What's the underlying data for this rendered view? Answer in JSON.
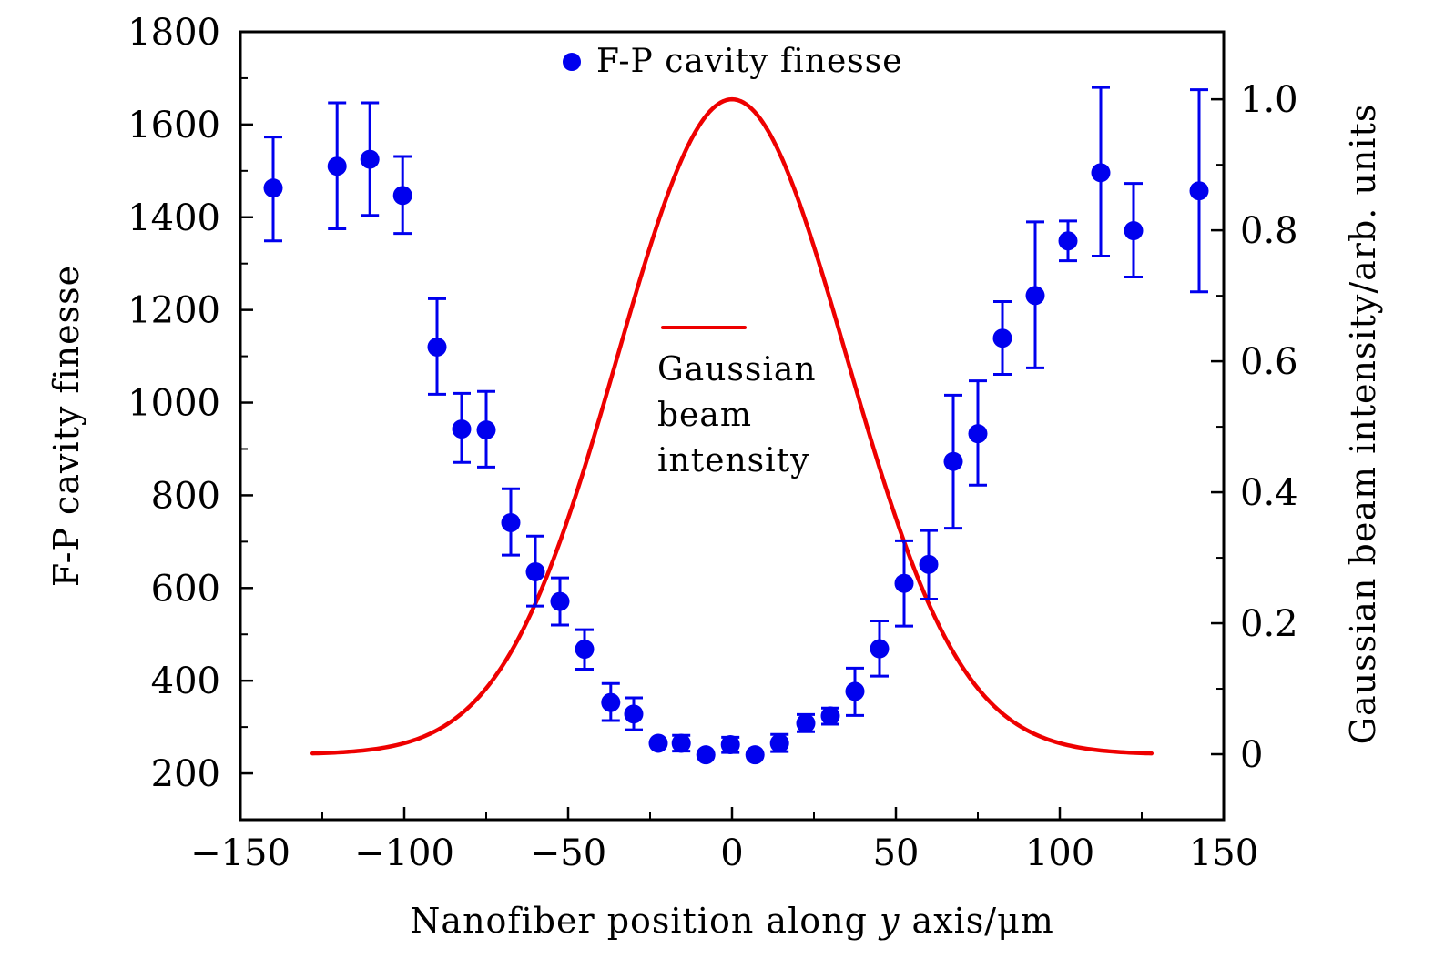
{
  "chart_data": {
    "type": "scatter",
    "title": "",
    "xlabel_parts": [
      "Nanofiber position along ",
      "y",
      " axis/μm"
    ],
    "xlabel": "Nanofiber position along y axis/μm",
    "ylabel": "F-P cavity finesse",
    "ylabel_right": "Gaussian beam intensity/arb. units",
    "xlim": [
      -150,
      150
    ],
    "ylim": [
      100,
      1800
    ],
    "ylim_right": [
      -0.1,
      1.103
    ],
    "xticks": [
      -150,
      -100,
      -50,
      0,
      50,
      100,
      150
    ],
    "xtick_labels": [
      "−150",
      "−100",
      "−50",
      "0",
      "50",
      "100",
      "150"
    ],
    "xminor_ticks": [
      -125,
      -75,
      -25,
      25,
      75,
      125
    ],
    "yticks": [
      200,
      400,
      600,
      800,
      1000,
      1200,
      1400,
      1600,
      1800
    ],
    "ytick_labels": [
      "200",
      "400",
      "600",
      "800",
      "1000",
      "1200",
      "1400",
      "1600",
      "1800"
    ],
    "yminor_ticks": [
      300,
      500,
      700,
      900,
      1100,
      1300,
      1500,
      1700
    ],
    "yticks_right": [
      0,
      0.2,
      0.4,
      0.6,
      0.8,
      1.0
    ],
    "ytick_labels_right": [
      "0",
      "0.2",
      "0.4",
      "0.6",
      "0.8",
      "1.0"
    ],
    "yminor_ticks_right": [
      -0.1,
      0.1,
      0.3,
      0.5,
      0.7,
      0.9
    ],
    "grid": false,
    "series": [
      {
        "name": "F-P cavity finesse",
        "type": "scatter-errorbar",
        "axis": "left",
        "color": "#0000ee",
        "points": [
          {
            "x": -140,
            "y": 1463,
            "lo": 1349,
            "hi": 1573
          },
          {
            "x": -120.5,
            "y": 1510,
            "lo": 1375,
            "hi": 1647
          },
          {
            "x": -110.5,
            "y": 1525,
            "lo": 1404,
            "hi": 1647
          },
          {
            "x": -100.5,
            "y": 1447,
            "lo": 1365,
            "hi": 1531
          },
          {
            "x": -90,
            "y": 1120,
            "lo": 1018,
            "hi": 1224
          },
          {
            "x": -82.5,
            "y": 943,
            "lo": 871,
            "hi": 1020
          },
          {
            "x": -75,
            "y": 941,
            "lo": 861,
            "hi": 1024
          },
          {
            "x": -67.5,
            "y": 741,
            "lo": 671,
            "hi": 814
          },
          {
            "x": -60,
            "y": 635,
            "lo": 561,
            "hi": 712
          },
          {
            "x": -52.5,
            "y": 571,
            "lo": 520,
            "hi": 622
          },
          {
            "x": -45,
            "y": 468,
            "lo": 425,
            "hi": 510
          },
          {
            "x": -37,
            "y": 353,
            "lo": 314,
            "hi": 394
          },
          {
            "x": -30,
            "y": 328,
            "lo": 294,
            "hi": 363
          },
          {
            "x": -22.5,
            "y": 265,
            "lo": 265,
            "hi": 265
          },
          {
            "x": -15.5,
            "y": 265,
            "lo": 248,
            "hi": 282
          },
          {
            "x": -8,
            "y": 240,
            "lo": 240,
            "hi": 240
          },
          {
            "x": -0.5,
            "y": 262,
            "lo": 245,
            "hi": 278
          },
          {
            "x": 7,
            "y": 240,
            "lo": 240,
            "hi": 240
          },
          {
            "x": 14.5,
            "y": 265,
            "lo": 247,
            "hi": 284
          },
          {
            "x": 22.5,
            "y": 308,
            "lo": 290,
            "hi": 327
          },
          {
            "x": 30,
            "y": 324,
            "lo": 306,
            "hi": 341
          },
          {
            "x": 37.5,
            "y": 377,
            "lo": 325,
            "hi": 427
          },
          {
            "x": 45,
            "y": 469,
            "lo": 410,
            "hi": 529
          },
          {
            "x": 52.5,
            "y": 610,
            "lo": 518,
            "hi": 702
          },
          {
            "x": 60,
            "y": 651,
            "lo": 576,
            "hi": 724
          },
          {
            "x": 67.5,
            "y": 873,
            "lo": 729,
            "hi": 1016
          },
          {
            "x": 75,
            "y": 933,
            "lo": 822,
            "hi": 1047
          },
          {
            "x": 82.5,
            "y": 1139,
            "lo": 1061,
            "hi": 1218
          },
          {
            "x": 92.5,
            "y": 1231,
            "lo": 1075,
            "hi": 1390
          },
          {
            "x": 102.5,
            "y": 1349,
            "lo": 1306,
            "hi": 1392
          },
          {
            "x": 112.5,
            "y": 1496,
            "lo": 1316,
            "hi": 1680
          },
          {
            "x": 122.5,
            "y": 1371,
            "lo": 1271,
            "hi": 1473
          },
          {
            "x": 142.5,
            "y": 1457,
            "lo": 1239,
            "hi": 1675
          }
        ]
      },
      {
        "name": "Gaussian beam intensity",
        "type": "line",
        "axis": "right",
        "color": "#ee0000",
        "function": "exp(-2*x^2/w^2)",
        "w": 70,
        "x_range": [
          -128,
          128
        ],
        "peak": 1.0,
        "peak_x": 0
      }
    ],
    "legend": [
      {
        "label": "F-P cavity finesse",
        "marker": "circle",
        "position": "top-center"
      },
      {
        "label_lines": [
          "Gaussian",
          "beam",
          "intensity"
        ],
        "marker": "line",
        "position": "center"
      }
    ]
  }
}
